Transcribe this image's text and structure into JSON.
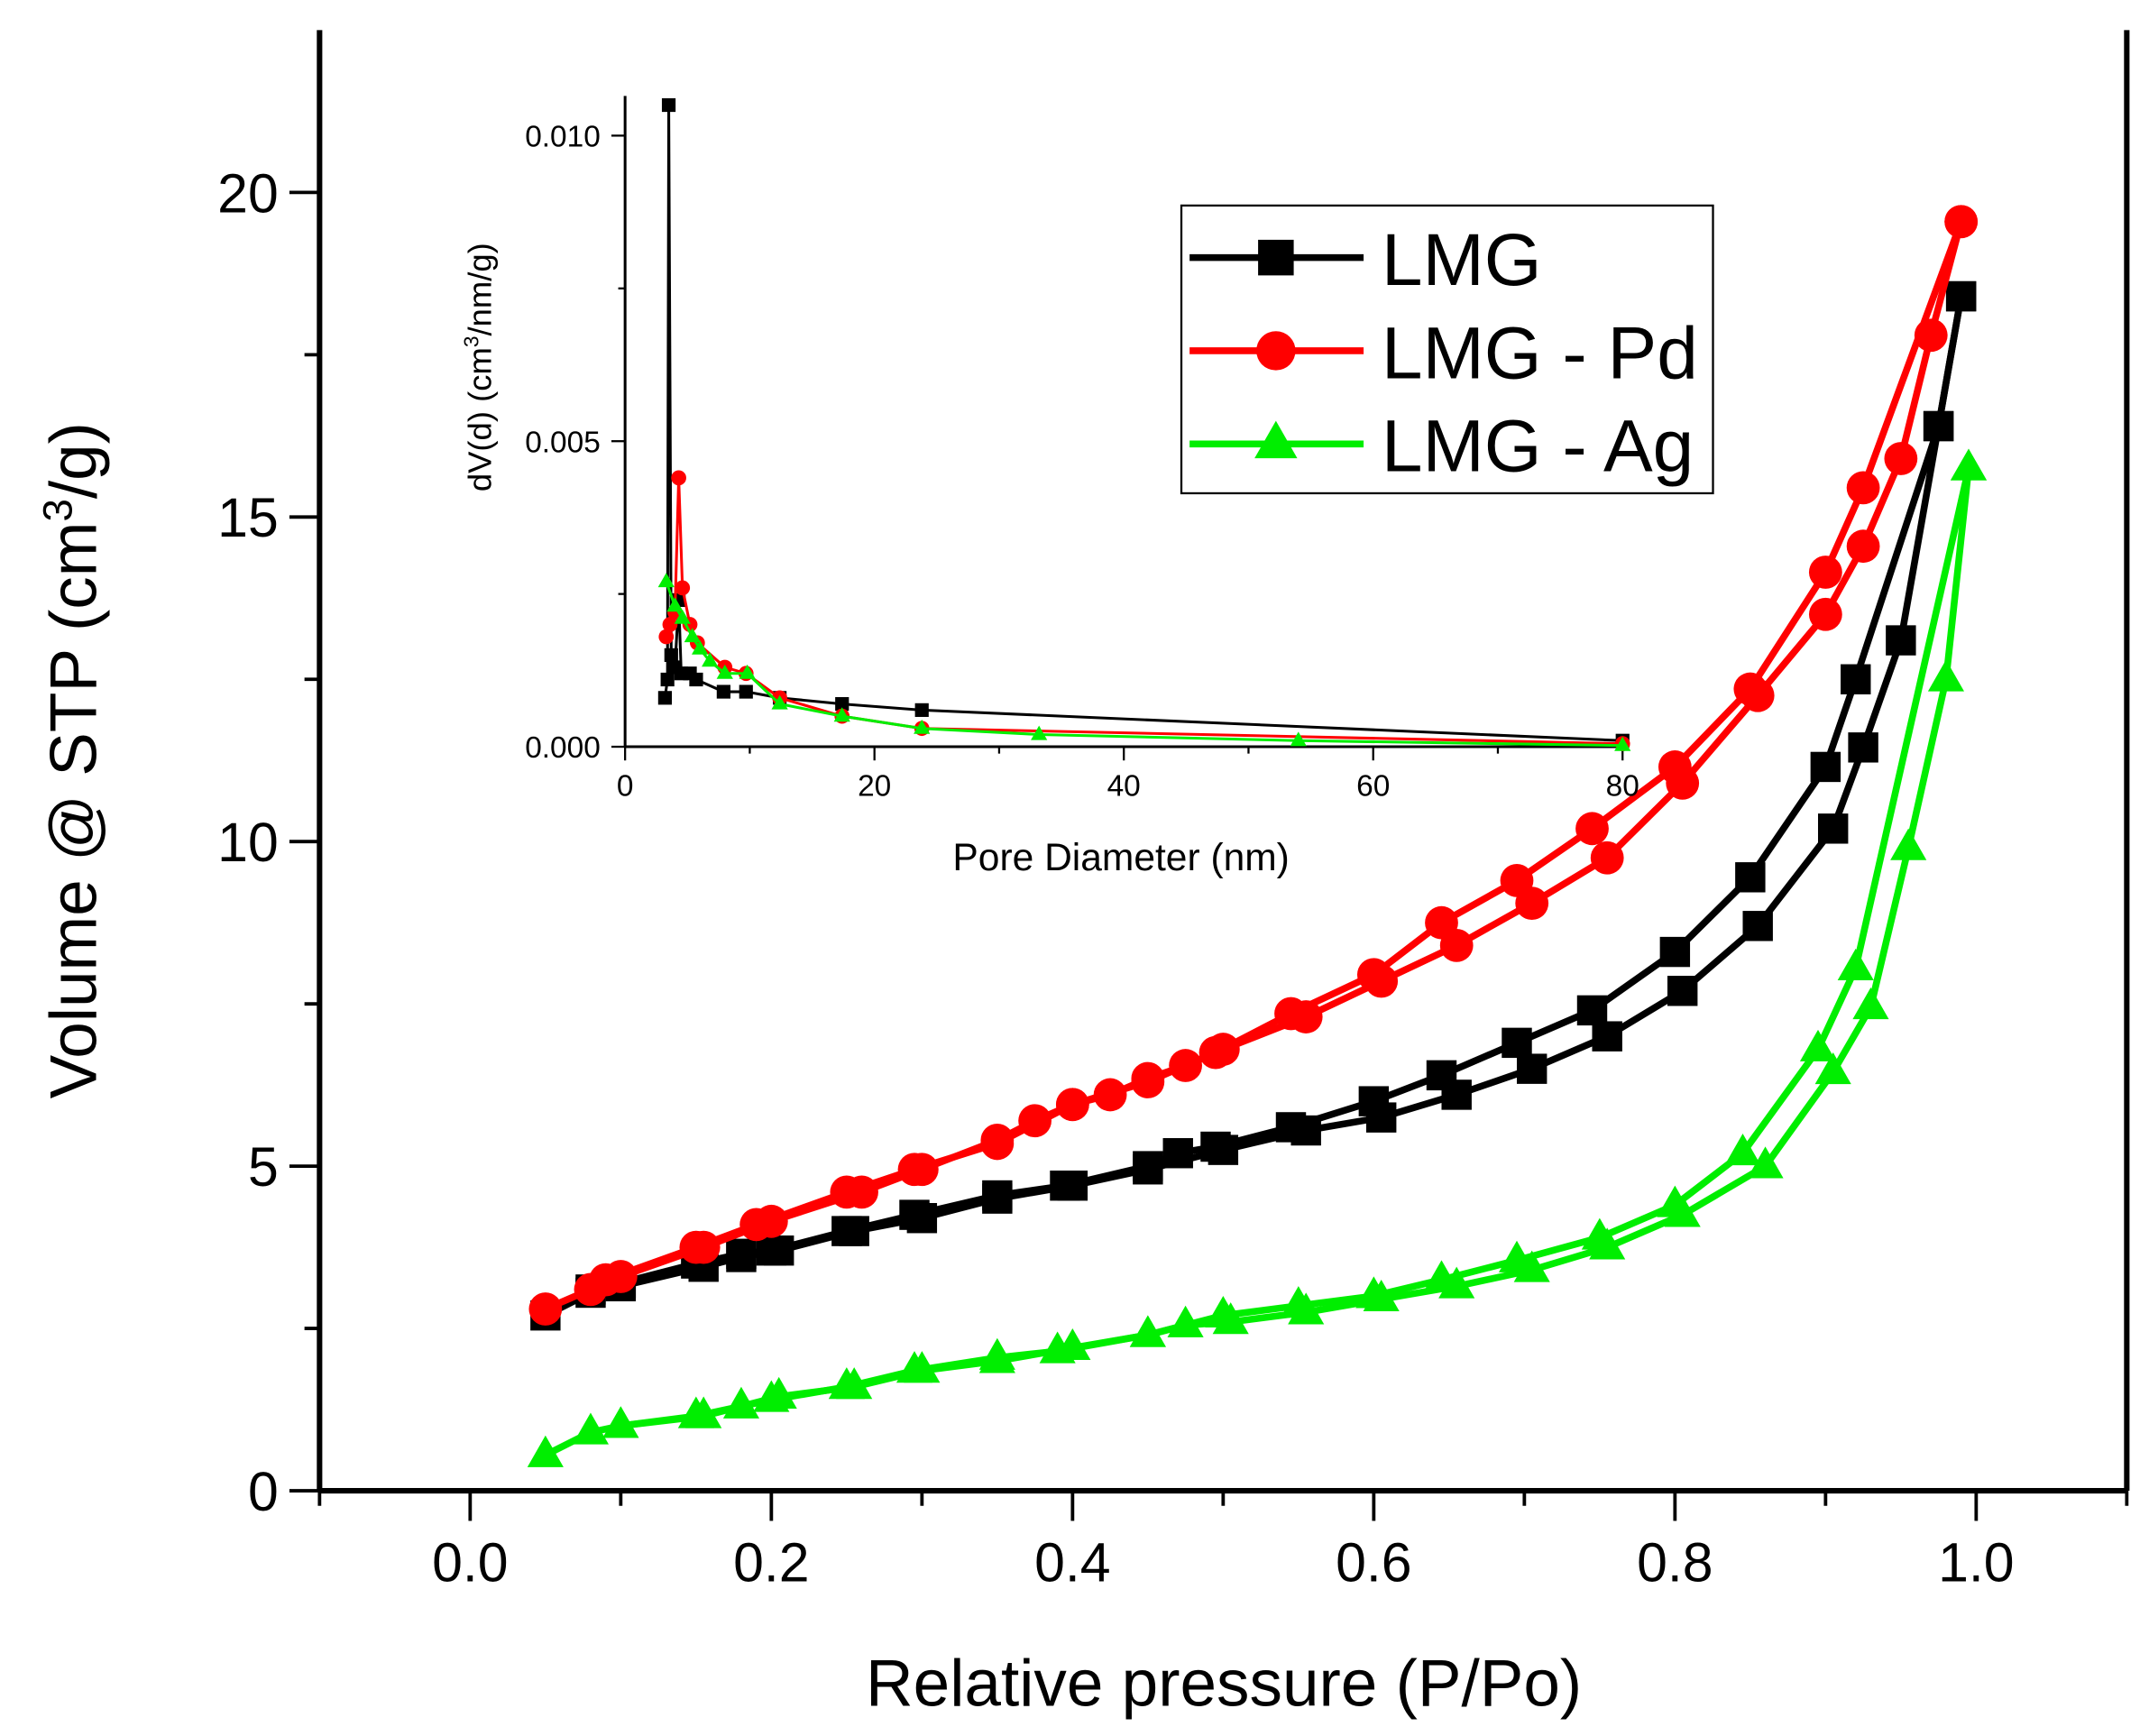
{
  "chart_data": [
    {
      "type": "line",
      "xlabel": "Relative pressure (P/Po)",
      "ylabel_main": "Volume @ STP (cm",
      "ylabel_sup": "3",
      "ylabel_end": "/g)",
      "xlim": [
        -0.1,
        1.1
      ],
      "ylim": [
        0,
        22.5
      ],
      "xticks": [
        0.0,
        0.2,
        0.4,
        0.6,
        0.8,
        1.0
      ],
      "xtick_labels": [
        "0.0",
        "0.2",
        "0.4",
        "0.6",
        "0.8",
        "1.0"
      ],
      "yticks": [
        0,
        5,
        10,
        15,
        20
      ],
      "ytick_labels": [
        "0",
        "5",
        "10",
        "15",
        "20"
      ],
      "grid": false,
      "legend_placement": "top-right",
      "series": [
        {
          "name": "LMG",
          "color": "#000000",
          "marker": "square",
          "adsorption": [
            [
              0.05,
              2.7
            ],
            [
              0.08,
              3.05
            ],
            [
              0.1,
              3.15
            ],
            [
              0.155,
              3.45
            ],
            [
              0.18,
              3.6
            ],
            [
              0.205,
              3.7
            ],
            [
              0.255,
              4.0
            ],
            [
              0.3,
              4.2
            ],
            [
              0.35,
              4.5
            ],
            [
              0.4,
              4.7
            ],
            [
              0.45,
              4.95
            ],
            [
              0.5,
              5.25
            ],
            [
              0.555,
              5.55
            ],
            [
              0.605,
              5.75
            ],
            [
              0.655,
              6.1
            ],
            [
              0.705,
              6.5
            ],
            [
              0.755,
              7.0
            ],
            [
              0.805,
              7.7
            ],
            [
              0.855,
              8.7
            ],
            [
              0.905,
              10.2
            ],
            [
              0.925,
              11.45
            ],
            [
              0.95,
              13.1
            ],
            [
              0.975,
              16.4
            ],
            [
              0.99,
              18.4
            ]
          ],
          "desorption": [
            [
              0.99,
              18.4
            ],
            [
              0.975,
              16.4
            ],
            [
              0.92,
              12.5
            ],
            [
              0.9,
              11.15
            ],
            [
              0.85,
              9.45
            ],
            [
              0.8,
              8.3
            ],
            [
              0.745,
              7.4
            ],
            [
              0.695,
              6.9
            ],
            [
              0.645,
              6.4
            ],
            [
              0.6,
              6.0
            ],
            [
              0.545,
              5.6
            ],
            [
              0.495,
              5.3
            ],
            [
              0.47,
              5.2
            ],
            [
              0.45,
              5.0
            ],
            [
              0.395,
              4.7
            ],
            [
              0.35,
              4.55
            ],
            [
              0.295,
              4.25
            ],
            [
              0.25,
              4.0
            ],
            [
              0.2,
              3.7
            ],
            [
              0.18,
              3.65
            ],
            [
              0.15,
              3.5
            ],
            [
              0.1,
              3.2
            ],
            [
              0.08,
              3.1
            ]
          ]
        },
        {
          "name": "LMG - Pd",
          "color": "#ff0000",
          "marker": "circle",
          "adsorption": [
            [
              0.05,
              2.8
            ],
            [
              0.08,
              3.1
            ],
            [
              0.1,
              3.3
            ],
            [
              0.155,
              3.75
            ],
            [
              0.2,
              4.15
            ],
            [
              0.26,
              4.6
            ],
            [
              0.3,
              4.95
            ],
            [
              0.35,
              5.4
            ],
            [
              0.375,
              5.7
            ],
            [
              0.4,
              5.95
            ],
            [
              0.425,
              6.1
            ],
            [
              0.45,
              6.35
            ],
            [
              0.475,
              6.55
            ],
            [
              0.5,
              6.8
            ],
            [
              0.555,
              7.3
            ],
            [
              0.605,
              7.85
            ],
            [
              0.655,
              8.4
            ],
            [
              0.705,
              9.05
            ],
            [
              0.755,
              9.75
            ],
            [
              0.805,
              10.9
            ],
            [
              0.855,
              12.25
            ],
            [
              0.9,
              13.5
            ],
            [
              0.925,
              14.55
            ],
            [
              0.95,
              15.9
            ],
            [
              0.97,
              17.8
            ],
            [
              0.99,
              19.55
            ]
          ],
          "desorption": [
            [
              0.99,
              19.55
            ],
            [
              0.925,
              15.45
            ],
            [
              0.9,
              14.15
            ],
            [
              0.85,
              12.35
            ],
            [
              0.8,
              11.15
            ],
            [
              0.745,
              10.2
            ],
            [
              0.695,
              9.4
            ],
            [
              0.645,
              8.75
            ],
            [
              0.6,
              7.95
            ],
            [
              0.545,
              7.35
            ],
            [
              0.495,
              6.75
            ],
            [
              0.45,
              6.3
            ],
            [
              0.4,
              5.95
            ],
            [
              0.35,
              5.35
            ],
            [
              0.295,
              4.95
            ],
            [
              0.25,
              4.6
            ],
            [
              0.19,
              4.1
            ],
            [
              0.15,
              3.75
            ],
            [
              0.09,
              3.25
            ]
          ]
        },
        {
          "name": "LMG - Ag",
          "color": "#00ee00",
          "marker": "triangle",
          "adsorption": [
            [
              0.05,
              0.55
            ],
            [
              0.08,
              0.9
            ],
            [
              0.1,
              1.0
            ],
            [
              0.155,
              1.15
            ],
            [
              0.18,
              1.3
            ],
            [
              0.205,
              1.45
            ],
            [
              0.255,
              1.6
            ],
            [
              0.3,
              1.85
            ],
            [
              0.35,
              2.0
            ],
            [
              0.4,
              2.2
            ],
            [
              0.45,
              2.4
            ],
            [
              0.475,
              2.55
            ],
            [
              0.505,
              2.6
            ],
            [
              0.555,
              2.75
            ],
            [
              0.605,
              2.95
            ],
            [
              0.655,
              3.15
            ],
            [
              0.705,
              3.4
            ],
            [
              0.755,
              3.75
            ],
            [
              0.805,
              4.25
            ],
            [
              0.86,
              5.0
            ],
            [
              0.905,
              6.45
            ],
            [
              0.93,
              7.45
            ],
            [
              0.955,
              9.9
            ],
            [
              0.98,
              12.5
            ],
            [
              0.995,
              15.75
            ]
          ],
          "desorption": [
            [
              0.995,
              15.75
            ],
            [
              0.92,
              8.05
            ],
            [
              0.895,
              6.8
            ],
            [
              0.845,
              5.2
            ],
            [
              0.8,
              4.4
            ],
            [
              0.75,
              3.9
            ],
            [
              0.695,
              3.55
            ],
            [
              0.645,
              3.25
            ],
            [
              0.6,
              3.0
            ],
            [
              0.55,
              2.85
            ],
            [
              0.5,
              2.7
            ],
            [
              0.45,
              2.4
            ],
            [
              0.39,
              2.15
            ],
            [
              0.35,
              2.05
            ],
            [
              0.295,
              1.85
            ],
            [
              0.25,
              1.6
            ],
            [
              0.2,
              1.4
            ],
            [
              0.15,
              1.15
            ],
            [
              0.1,
              1.0
            ]
          ]
        }
      ]
    },
    {
      "type": "line",
      "role": "inset",
      "xlabel": "Pore Diameter (nm)",
      "ylabel_main": "dV(d) (cm",
      "ylabel_sup": "3",
      "ylabel_end": "/nm/g)",
      "xlim": [
        0,
        80
      ],
      "ylim": [
        0,
        0.01065
      ],
      "xticks": [
        0,
        20,
        40,
        60,
        80
      ],
      "xtick_labels": [
        "0",
        "20",
        "40",
        "60",
        "80"
      ],
      "yticks": [
        0.0,
        0.005,
        0.01
      ],
      "ytick_labels": [
        "0.000",
        "0.005",
        "0.010"
      ],
      "grid": false,
      "series": [
        {
          "name": "LMG",
          "color": "#000000",
          "marker": "square",
          "points": [
            [
              3.2,
              0.0008
            ],
            [
              3.4,
              0.0011
            ],
            [
              3.5,
              0.0105
            ],
            [
              3.7,
              0.0015
            ],
            [
              4.0,
              0.0013
            ],
            [
              4.3,
              0.0024
            ],
            [
              4.5,
              0.0012
            ],
            [
              5.2,
              0.0012
            ],
            [
              5.7,
              0.0011
            ],
            [
              7.9,
              0.0009
            ],
            [
              9.7,
              0.0009
            ],
            [
              12.4,
              0.0008
            ],
            [
              17.4,
              0.0007
            ],
            [
              23.8,
              0.0006
            ],
            [
              80,
              0.0001
            ]
          ]
        },
        {
          "name": "LMG - Pd",
          "color": "#ff0000",
          "marker": "circle",
          "points": [
            [
              3.3,
              0.0018
            ],
            [
              3.6,
              0.002
            ],
            [
              4.0,
              0.0022
            ],
            [
              4.3,
              0.0044
            ],
            [
              4.6,
              0.0026
            ],
            [
              5.2,
              0.002
            ],
            [
              5.8,
              0.0017
            ],
            [
              8.0,
              0.0013
            ],
            [
              9.7,
              0.0012
            ],
            [
              12.4,
              0.0008
            ],
            [
              17.4,
              0.0005
            ],
            [
              23.8,
              0.0003
            ],
            [
              80,
              5e-05
            ]
          ]
        },
        {
          "name": "LMG - Ag",
          "color": "#00ee00",
          "marker": "triangle",
          "points": [
            [
              3.3,
              0.0027
            ],
            [
              4.0,
              0.0023
            ],
            [
              4.6,
              0.0021
            ],
            [
              5.4,
              0.0018
            ],
            [
              6.0,
              0.0016
            ],
            [
              6.8,
              0.0014
            ],
            [
              8.0,
              0.0012
            ],
            [
              9.8,
              0.0012
            ],
            [
              12.4,
              0.0007
            ],
            [
              17.4,
              0.0005
            ],
            [
              23.8,
              0.0003
            ],
            [
              33.2,
              0.0002
            ],
            [
              54,
              0.0001
            ],
            [
              80,
              2e-05
            ]
          ]
        }
      ]
    }
  ]
}
